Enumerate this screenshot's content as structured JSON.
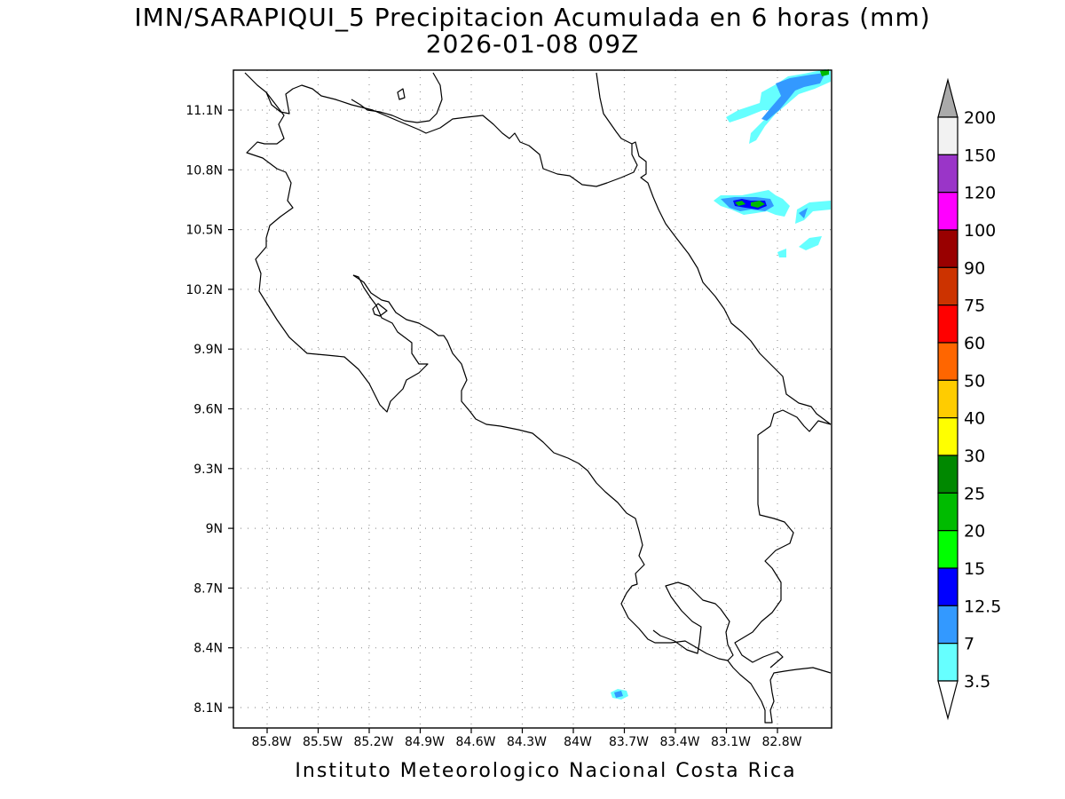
{
  "title_line1": "IMN/SARAPIQUI_5 Precipitacion Acumulada en 6 horas (mm)",
  "title_line2": "2026-01-08 09Z",
  "footer": "Instituto Meteorologico Nacional Costa Rica",
  "lat_ticks": [
    "11.1N",
    "10.8N",
    "10.5N",
    "10.2N",
    "9.9N",
    "9.6N",
    "9.3N",
    "9N",
    "8.7N",
    "8.4N",
    "8.1N"
  ],
  "lon_ticks": [
    "85.8W",
    "85.5W",
    "85.2W",
    "84.9W",
    "84.6W",
    "84.3W",
    "84W",
    "83.7W",
    "83.4W",
    "83.1W",
    "82.8W"
  ],
  "colorbar": {
    "labels": [
      "200",
      "150",
      "120",
      "100",
      "90",
      "75",
      "60",
      "50",
      "40",
      "30",
      "25",
      "20",
      "15",
      "12.5",
      "7",
      "3.5"
    ],
    "colors": [
      "#f2f2f2",
      "#9a35c8",
      "#ff00ff",
      "#990000",
      "#cc3300",
      "#ff0000",
      "#ff6600",
      "#ffcc00",
      "#ffff00",
      "#008800",
      "#00bb00",
      "#00ff00",
      "#0000ff",
      "#3399ff",
      "#66ffff"
    ],
    "over_color": "#aaaaaa",
    "under_color": "#ffffff"
  }
}
